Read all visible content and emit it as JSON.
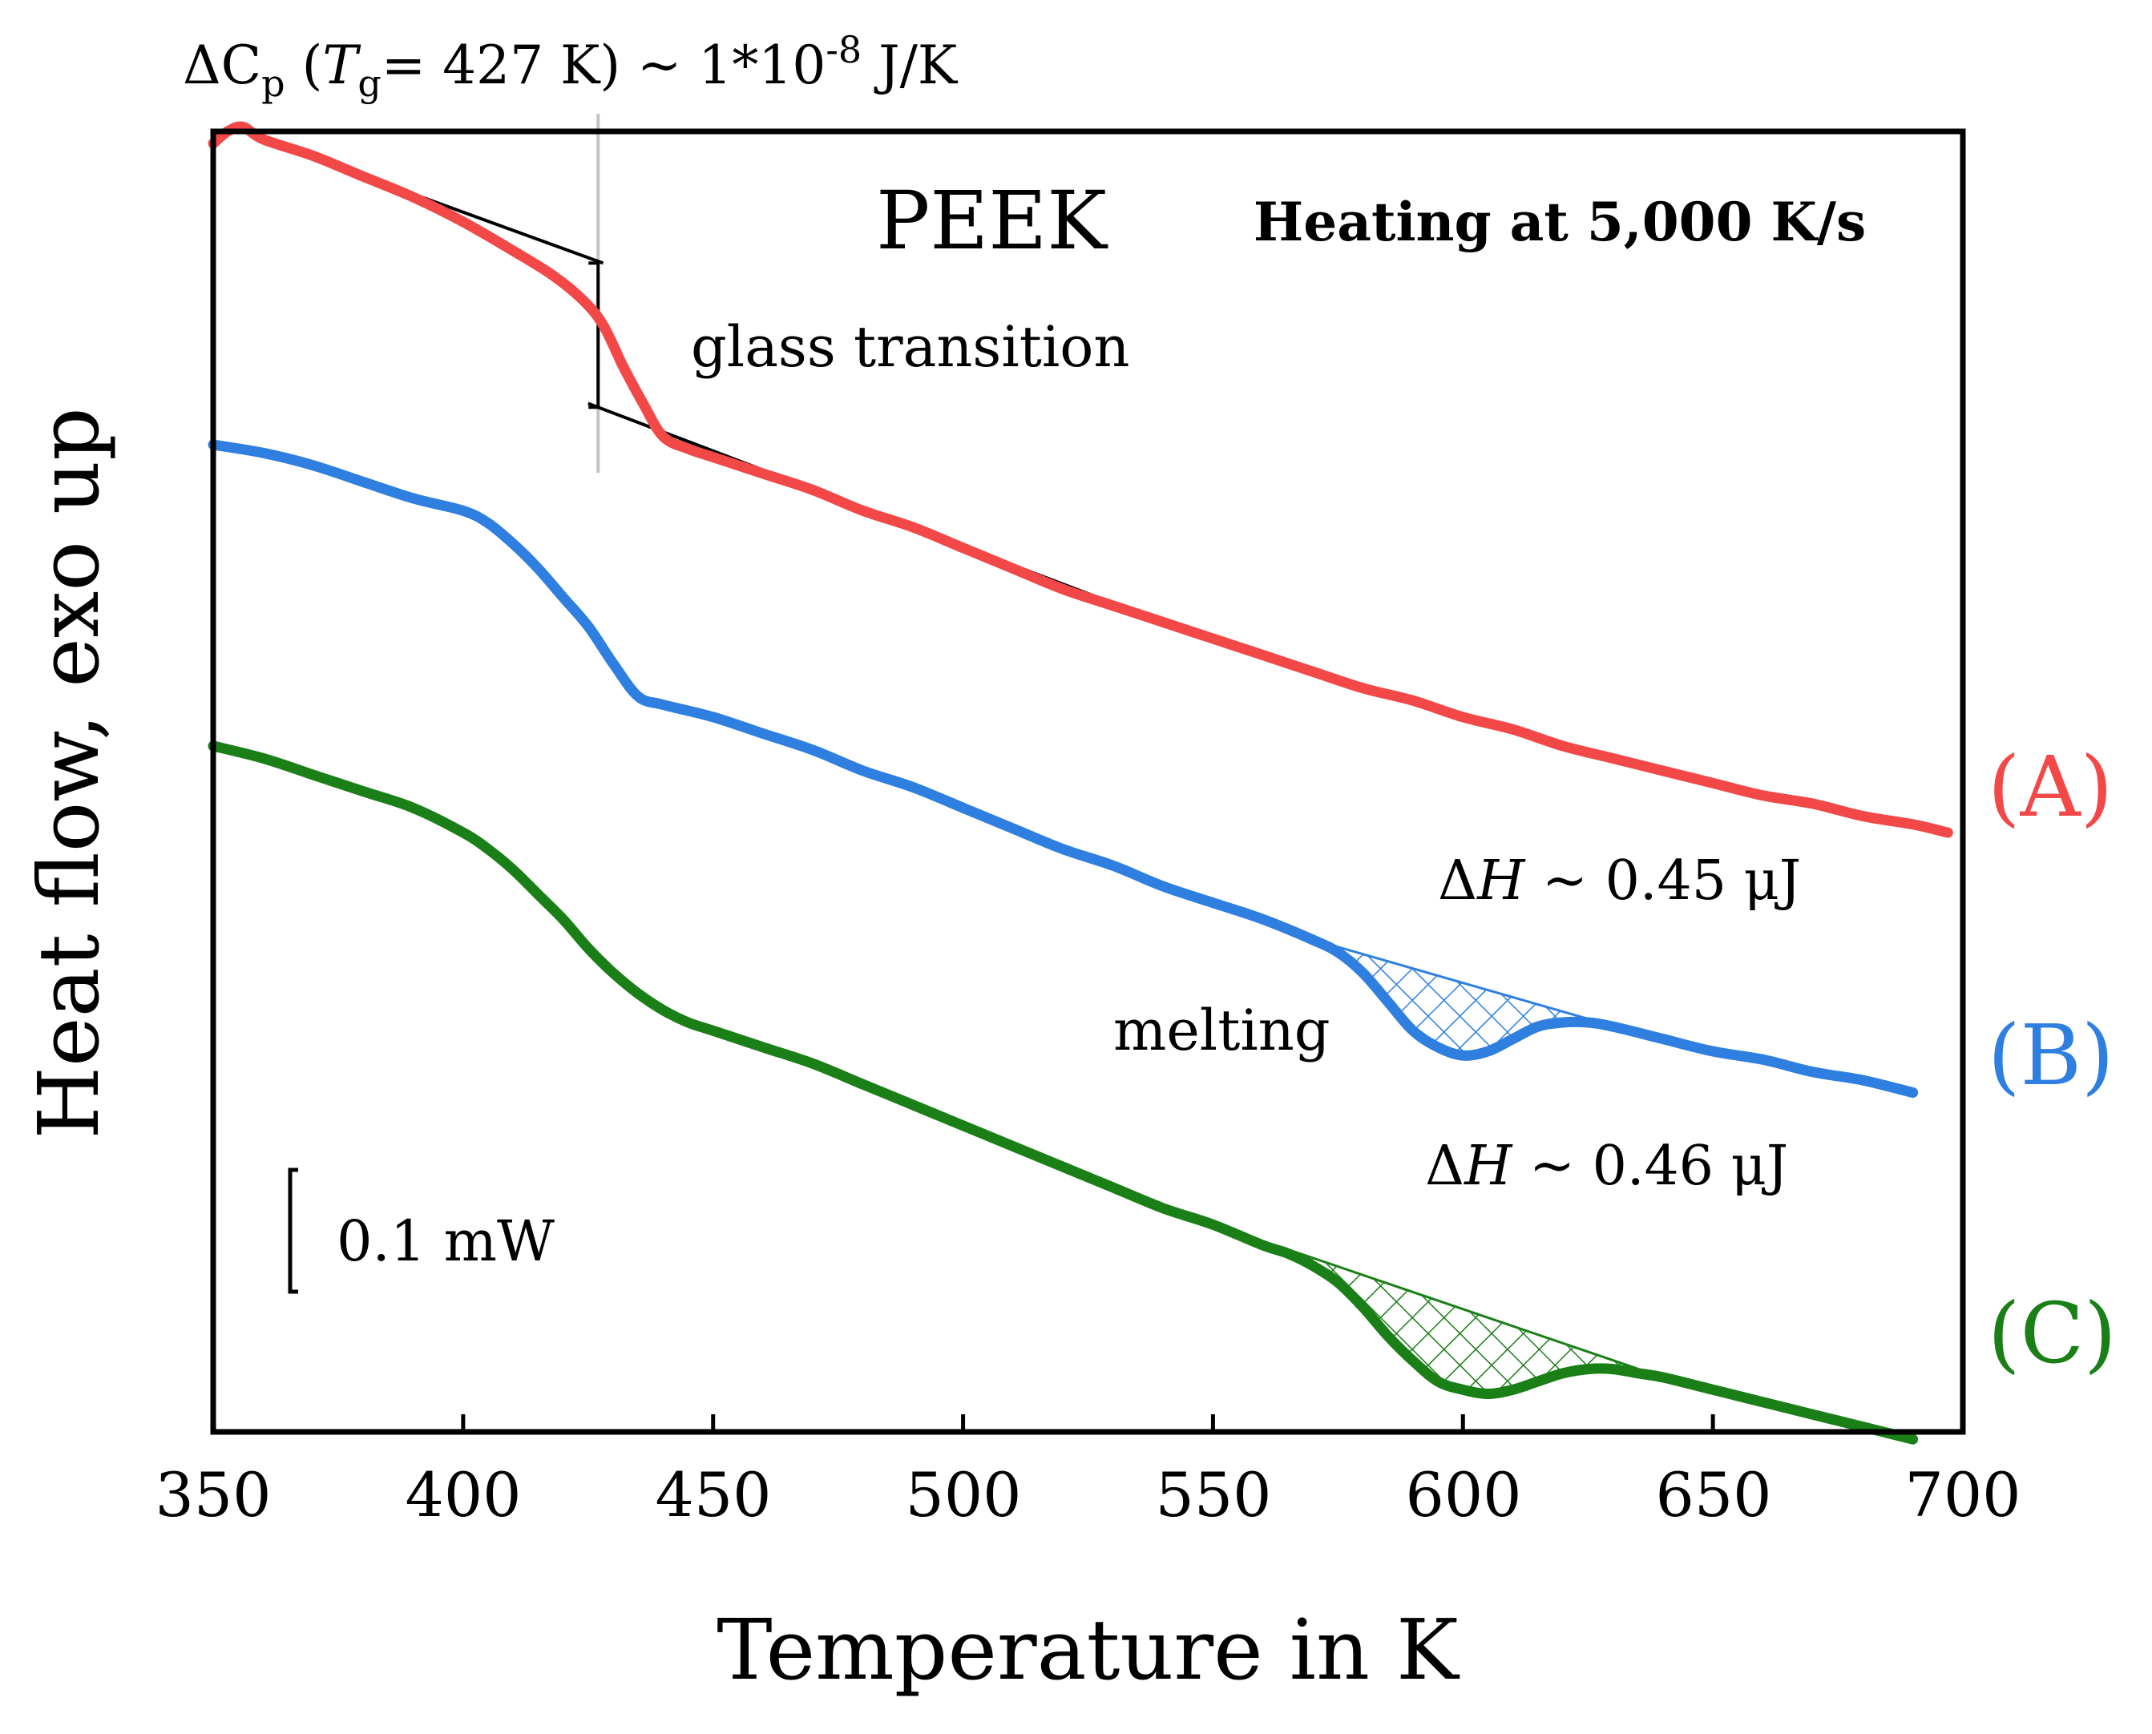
{
  "chart_data": {
    "type": "line",
    "title": "PEEK",
    "subtitle": "Heating at 5,000 K/s",
    "xlabel": "Temperature in K",
    "ylabel": "Heat flow, exo up",
    "xlim": [
      350,
      700
    ],
    "ylim_label": "arbitrary units (curves offset vertically)",
    "x_ticks": [
      "350",
      "400",
      "450",
      "500",
      "550",
      "600",
      "650",
      "700"
    ],
    "scale_bar_label": "0.1 mW",
    "annotations": {
      "dcp_prefix": "ΔC",
      "dcp_sub_p": "p",
      "dcp_paren": " (",
      "dcp_T": "T",
      "dcp_sub_g": "g",
      "dcp_rest": "= 427 K) ~ 1*10",
      "dcp_exp": "-8",
      "dcp_unit": " J/K",
      "glass_transition": "glass transition",
      "melting": "melting",
      "dH_B_delta": "Δ",
      "dH_B_H": "H",
      "dH_B_value": " ~ 0.45 μJ",
      "dH_C_delta": "Δ",
      "dH_C_H": "H",
      "dH_C_value": " ~ 0.46 μJ"
    },
    "tg_marker_K": 427,
    "series": [
      {
        "name": "(A)",
        "color": "#f24848",
        "x": [
          350,
          353,
          356,
          360,
          370,
          380,
          390,
          400,
          410,
          418,
          424,
          428,
          432,
          436,
          440,
          445,
          450,
          460,
          470,
          480,
          490,
          500,
          510,
          520,
          530,
          540,
          550,
          560,
          570,
          580,
          590,
          600,
          610,
          620,
          630,
          640,
          650,
          660,
          670,
          680,
          690,
          697
        ],
        "y": [
          1.96,
          1.99,
          2.0,
          1.97,
          1.93,
          1.88,
          1.83,
          1.77,
          1.7,
          1.64,
          1.58,
          1.52,
          1.42,
          1.33,
          1.25,
          1.22,
          1.2,
          1.16,
          1.12,
          1.07,
          1.03,
          0.98,
          0.93,
          0.88,
          0.84,
          0.8,
          0.76,
          0.72,
          0.68,
          0.64,
          0.61,
          0.57,
          0.54,
          0.5,
          0.47,
          0.44,
          0.41,
          0.38,
          0.36,
          0.33,
          0.31,
          0.29
        ]
      },
      {
        "name": "(B)",
        "color": "#2e7fe0",
        "x": [
          350,
          360,
          370,
          380,
          390,
          400,
          405,
          410,
          415,
          420,
          425,
          430,
          435,
          440,
          450,
          460,
          470,
          480,
          490,
          500,
          510,
          520,
          530,
          540,
          550,
          560,
          570,
          575,
          580,
          585,
          590,
          595,
          600,
          605,
          610,
          615,
          620,
          625,
          630,
          640,
          650,
          660,
          670,
          680,
          690
        ],
        "y": [
          1.23,
          1.21,
          1.18,
          1.14,
          1.1,
          1.07,
          1.04,
          0.99,
          0.93,
          0.86,
          0.79,
          0.7,
          0.62,
          0.6,
          0.57,
          0.53,
          0.49,
          0.44,
          0.4,
          0.35,
          0.3,
          0.25,
          0.21,
          0.16,
          0.12,
          0.08,
          0.03,
          0.0,
          -0.05,
          -0.12,
          -0.19,
          -0.23,
          -0.25,
          -0.24,
          -0.21,
          -0.18,
          -0.17,
          -0.17,
          -0.18,
          -0.21,
          -0.24,
          -0.26,
          -0.29,
          -0.31,
          -0.34
        ]
      },
      {
        "name": "(C)",
        "color": "#1a7f17",
        "x": [
          350,
          360,
          370,
          380,
          390,
          400,
          405,
          410,
          415,
          420,
          425,
          430,
          435,
          440,
          445,
          450,
          460,
          470,
          480,
          490,
          500,
          510,
          520,
          530,
          540,
          550,
          560,
          565,
          570,
          575,
          580,
          585,
          590,
          595,
          600,
          605,
          610,
          615,
          620,
          625,
          630,
          635,
          640,
          650,
          660,
          670,
          680,
          690
        ],
        "y": [
          0.5,
          0.47,
          0.43,
          0.39,
          0.35,
          0.29,
          0.25,
          0.2,
          0.14,
          0.08,
          0.01,
          -0.05,
          -0.1,
          -0.14,
          -0.17,
          -0.19,
          -0.23,
          -0.27,
          -0.32,
          -0.37,
          -0.42,
          -0.47,
          -0.52,
          -0.57,
          -0.62,
          -0.66,
          -0.71,
          -0.73,
          -0.76,
          -0.8,
          -0.86,
          -0.93,
          -0.99,
          -1.04,
          -1.06,
          -1.07,
          -1.06,
          -1.04,
          -1.02,
          -1.01,
          -1.01,
          -1.02,
          -1.03,
          -1.06,
          -1.09,
          -1.12,
          -1.15,
          -1.18
        ]
      }
    ],
    "baselines": {
      "B": {
        "x": [
          573,
          633
        ],
        "y": [
          0.02,
          -0.18
        ]
      },
      "C": {
        "x": [
          565,
          640
        ],
        "y": [
          -0.72,
          -1.03
        ]
      }
    },
    "tangent_lines": {
      "upper": {
        "x": [
          360,
          428
        ],
        "y": [
          1.97,
          1.67
        ]
      },
      "lower": {
        "x": [
          425,
          540
        ],
        "y": [
          1.33,
          0.8
        ]
      }
    }
  }
}
